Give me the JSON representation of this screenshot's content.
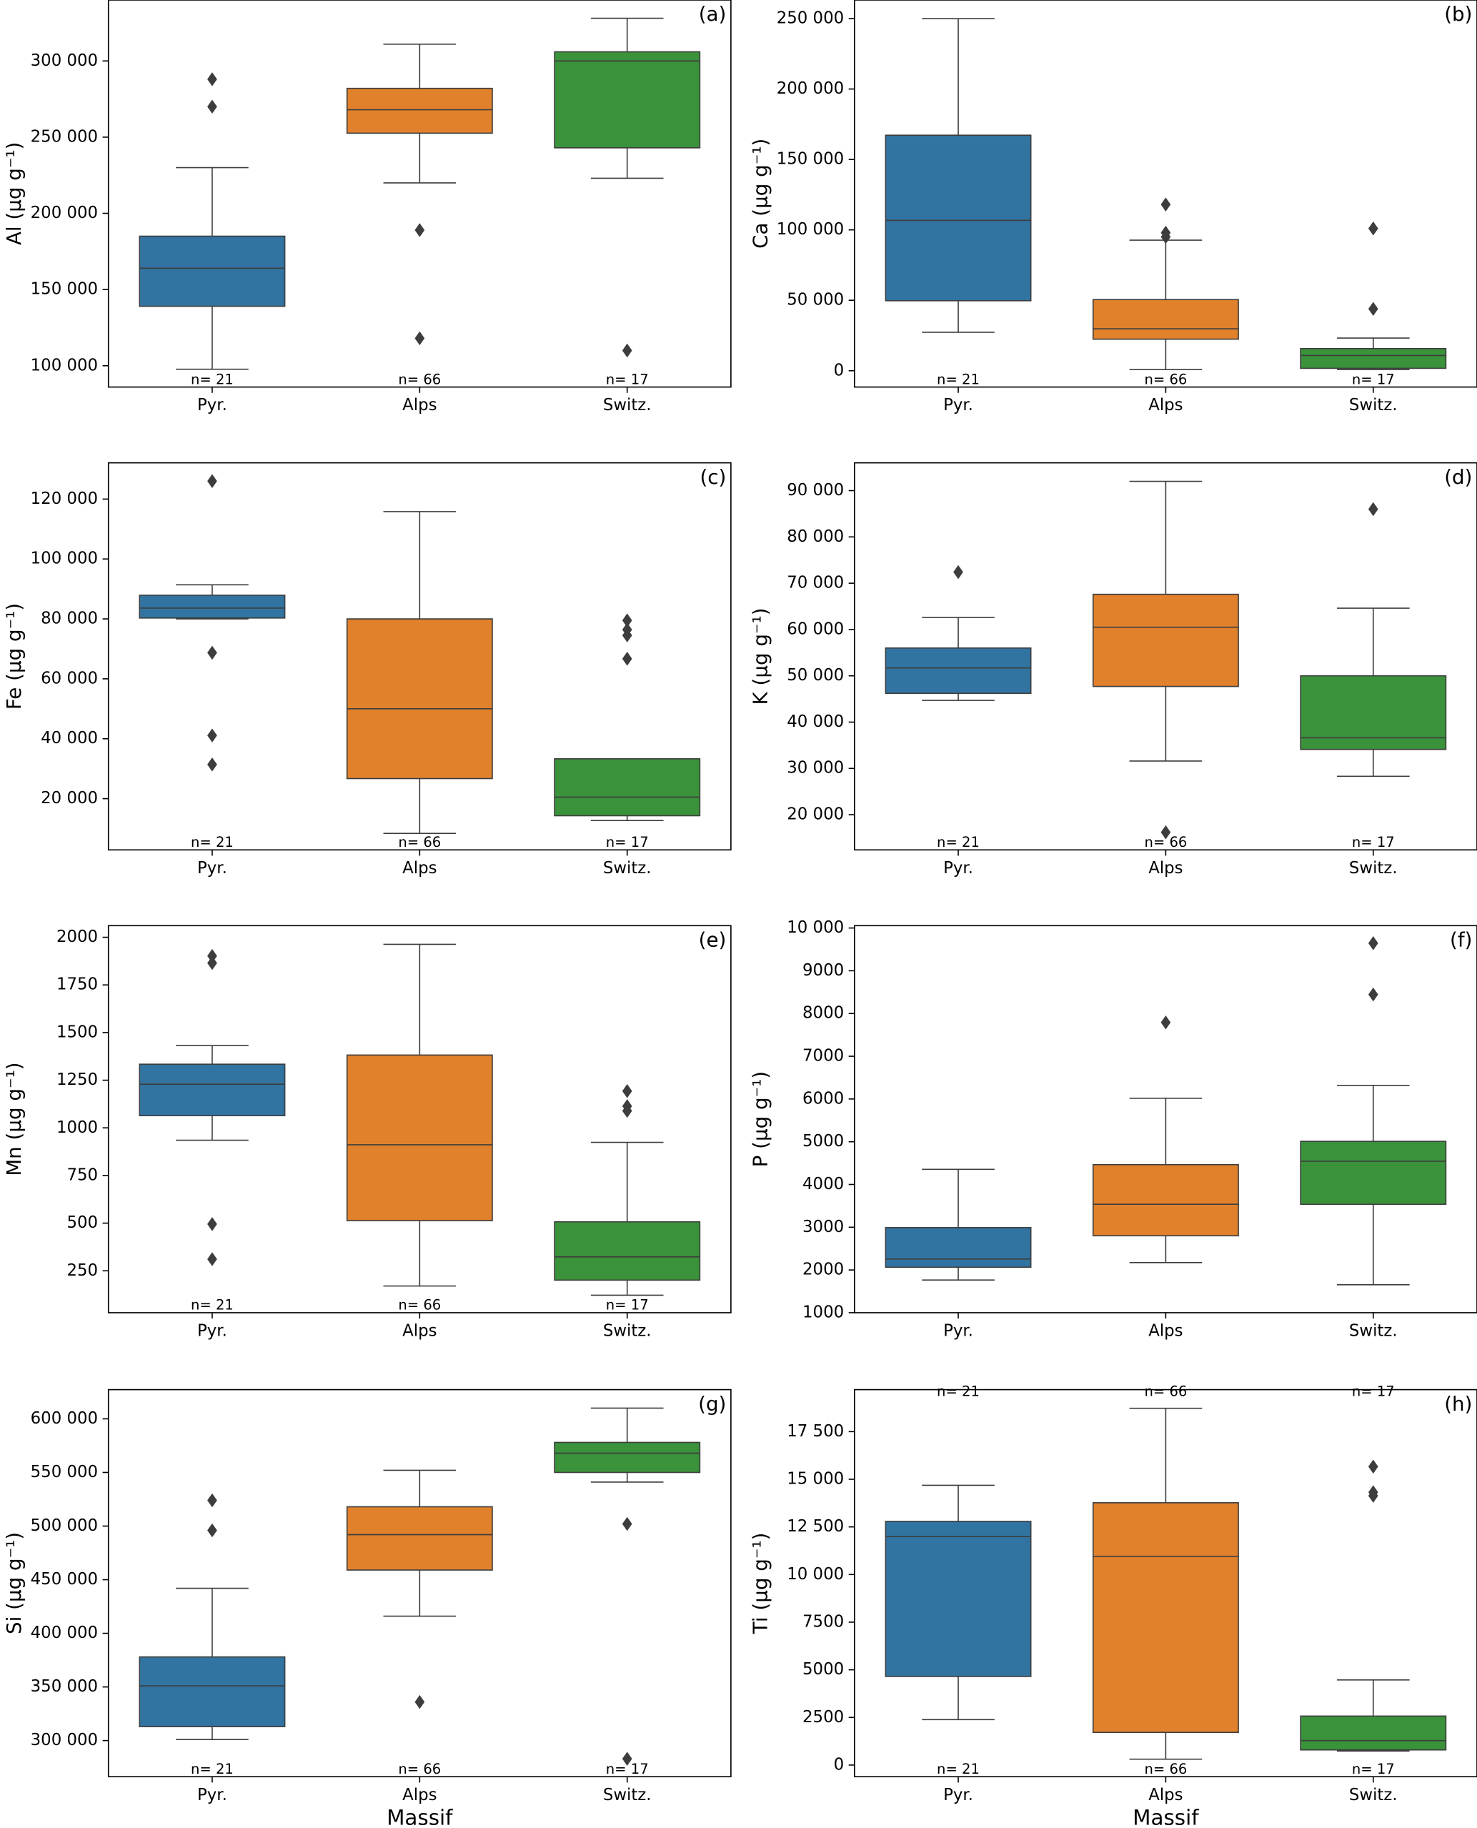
{
  "chart_data": [
    {
      "type": "box",
      "panel_label": "(a)",
      "ylabel": "Al (µg g⁻¹)",
      "categories": [
        "Pyr.",
        "Alps",
        "Switz."
      ],
      "boxes": [
        {
          "color": "#3274a1",
          "whislo": 97700,
          "q1": 139000,
          "med": 164000,
          "q3": 185000,
          "whishi": 230000,
          "fliers": [
            288000,
            270000
          ],
          "n": "n= 21"
        },
        {
          "color": "#e1812c",
          "whislo": 220000,
          "q1": 252600,
          "med": 268000,
          "q3": 282000,
          "whishi": 311000,
          "fliers": [
            189000,
            118000
          ],
          "n": "n= 66"
        },
        {
          "color": "#3a923a",
          "whislo": 223000,
          "q1": 243000,
          "med": 300000,
          "q3": 306000,
          "whishi": 328000,
          "fliers": [
            110000
          ],
          "n": "n= 17"
        }
      ],
      "ylim": [
        86000,
        340000
      ],
      "yticks": [
        {
          "value": 100000,
          "label": "100 000"
        },
        {
          "value": 150000,
          "label": "150 000"
        },
        {
          "value": 200000,
          "label": "200 000"
        },
        {
          "value": 250000,
          "label": "250 000"
        },
        {
          "value": 300000,
          "label": "300 000"
        }
      ]
    },
    {
      "type": "box",
      "panel_label": "(b)",
      "ylabel": "Ca (µg g⁻¹)",
      "categories": [
        "Pyr.",
        "Alps",
        "Switz."
      ],
      "boxes": [
        {
          "color": "#3274a1",
          "whislo": 27300,
          "q1": 49700,
          "med": 106800,
          "q3": 167200,
          "whishi": 250000,
          "fliers": [],
          "n": "n= 21"
        },
        {
          "color": "#e1812c",
          "whislo": 800,
          "q1": 22400,
          "med": 29800,
          "q3": 50500,
          "whishi": 92700,
          "fliers": [
            118000,
            98000,
            95000
          ],
          "n": "n= 66"
        },
        {
          "color": "#3a923a",
          "whislo": 800,
          "q1": 1700,
          "med": 10800,
          "q3": 15700,
          "whishi": 23200,
          "fliers": [
            101000,
            43900
          ],
          "n": "n= 17"
        }
      ],
      "ylim": [
        -11600,
        263200
      ],
      "yticks": [
        0,
        {
          "value": 50000,
          "label": "50 000"
        },
        {
          "value": 100000,
          "label": "100 000"
        },
        {
          "value": 150000,
          "label": "150 000"
        },
        {
          "value": 200000,
          "label": "200 000"
        },
        {
          "value": 250000,
          "label": "250 000"
        }
      ]
    },
    {
      "type": "box",
      "panel_label": "(c)",
      "ylabel": "Fe (µg g⁻¹)",
      "categories": [
        "Pyr.",
        "Alps",
        "Switz."
      ],
      "boxes": [
        {
          "color": "#3274a1",
          "whislo": 80000,
          "q1": 80300,
          "med": 83600,
          "q3": 87900,
          "whishi": 91400,
          "fliers": [
            126000,
            68700,
            41100,
            31400
          ],
          "n": "n= 21"
        },
        {
          "color": "#e1812c",
          "whislo": 8400,
          "q1": 26700,
          "med": 50000,
          "q3": 80000,
          "whishi": 115800,
          "fliers": [],
          "n": "n= 66"
        },
        {
          "color": "#3a923a",
          "whislo": 12700,
          "q1": 14300,
          "med": 20500,
          "q3": 33300,
          "whishi": 33300,
          "fliers": [
            79500,
            76400,
            74500,
            66700
          ],
          "n": "n= 17"
        }
      ],
      "ylim": [
        2900,
        132100
      ],
      "yticks": [
        {
          "value": 20000,
          "label": "20 000"
        },
        {
          "value": 40000,
          "label": "40 000"
        },
        {
          "value": 60000,
          "label": "60 000"
        },
        {
          "value": 80000,
          "label": "80 000"
        },
        {
          "value": 100000,
          "label": "100 000"
        },
        {
          "value": 120000,
          "label": "120 000"
        }
      ]
    },
    {
      "type": "box",
      "panel_label": "(d)",
      "ylabel": "K (µg g⁻¹)",
      "categories": [
        "Pyr.",
        "Alps",
        "Switz."
      ],
      "boxes": [
        {
          "color": "#3274a1",
          "whislo": 44700,
          "q1": 46200,
          "med": 51700,
          "q3": 56000,
          "whishi": 62600,
          "fliers": [
            72400
          ],
          "n": "n= 21"
        },
        {
          "color": "#e1812c",
          "whislo": 31600,
          "q1": 47700,
          "med": 60500,
          "q3": 67600,
          "whishi": 92000,
          "fliers": [
            16200
          ],
          "n": "n= 66"
        },
        {
          "color": "#3a923a",
          "whislo": 28300,
          "q1": 34100,
          "med": 36600,
          "q3": 50000,
          "whishi": 64600,
          "fliers": [
            86000
          ],
          "n": "n= 17"
        }
      ],
      "ylim": [
        12400,
        96000
      ],
      "yticks": [
        {
          "value": 20000,
          "label": "20 000"
        },
        {
          "value": 30000,
          "label": "30 000"
        },
        {
          "value": 40000,
          "label": "40 000"
        },
        {
          "value": 50000,
          "label": "50 000"
        },
        {
          "value": 60000,
          "label": "60 000"
        },
        {
          "value": 70000,
          "label": "70 000"
        },
        {
          "value": 80000,
          "label": "80 000"
        },
        {
          "value": 90000,
          "label": "90 000"
        }
      ]
    },
    {
      "type": "box",
      "panel_label": "(e)",
      "ylabel": "Mn (µg g⁻¹)",
      "categories": [
        "Pyr.",
        "Alps",
        "Switz."
      ],
      "boxes": [
        {
          "color": "#3274a1",
          "whislo": 935,
          "q1": 1064,
          "med": 1229,
          "q3": 1334,
          "whishi": 1432,
          "fliers": [
            1902,
            1865,
            495,
            311
          ],
          "n": "n= 21"
        },
        {
          "color": "#e1812c",
          "whislo": 170,
          "q1": 513,
          "med": 911,
          "q3": 1382,
          "whishi": 1963,
          "fliers": [],
          "n": "n= 66"
        },
        {
          "color": "#3a923a",
          "whislo": 122,
          "q1": 201,
          "med": 323,
          "q3": 507,
          "whishi": 924,
          "fliers": [
            1193,
            1114,
            1089
          ],
          "n": "n= 17"
        }
      ],
      "ylim": [
        30,
        2061
      ],
      "yticks": [
        250,
        500,
        750,
        1000,
        1250,
        1500,
        1750,
        2000
      ]
    },
    {
      "type": "box",
      "panel_label": "(f)",
      "ylabel": "P (µg g⁻¹)",
      "categories": [
        "Pyr.",
        "Alps",
        "Switz."
      ],
      "boxes": [
        {
          "color": "#3274a1",
          "whislo": 1764,
          "q1": 2064,
          "med": 2255,
          "q3": 2991,
          "whishi": 4355,
          "fliers": [],
          "n": "n= 21"
        },
        {
          "color": "#e1812c",
          "whislo": 2173,
          "q1": 2800,
          "med": 3536,
          "q3": 4464,
          "whishi": 6018,
          "fliers": [
            7791
          ],
          "n": "n= 66"
        },
        {
          "color": "#3a923a",
          "whislo": 1655,
          "q1": 3536,
          "med": 4545,
          "q3": 5009,
          "whishi": 6318,
          "fliers": [
            9645,
            8445
          ],
          "n": "n= 17"
        }
      ],
      "ylim": [
        1000,
        10055
      ],
      "yticks": [
        1000,
        2000,
        3000,
        4000,
        5000,
        6000,
        7000,
        8000,
        9000,
        {
          "value": 10000,
          "label": "10 000"
        }
      ]
    },
    {
      "type": "box",
      "panel_label": "(g)",
      "ylabel": "Si (µg g⁻¹)",
      "xlabel": "Massif",
      "categories": [
        "Pyr.",
        "Alps",
        "Switz."
      ],
      "boxes": [
        {
          "color": "#3274a1",
          "whislo": 301000,
          "q1": 313000,
          "med": 351000,
          "q3": 378000,
          "whishi": 442000,
          "fliers": [
            524000,
            496000
          ],
          "n": "n= 21"
        },
        {
          "color": "#e1812c",
          "whislo": 416000,
          "q1": 459000,
          "med": 492000,
          "q3": 518000,
          "whishi": 552000,
          "fliers": [
            336000
          ],
          "n": "n= 66"
        },
        {
          "color": "#3a923a",
          "whislo": 541000,
          "q1": 550000,
          "med": 568000,
          "q3": 578000,
          "whishi": 610000,
          "fliers": [
            502000,
            283000
          ],
          "n": "n= 17"
        }
      ],
      "ylim": [
        266300,
        627200
      ],
      "yticks": [
        {
          "value": 300000,
          "label": "300 000"
        },
        {
          "value": 350000,
          "label": "350 000"
        },
        {
          "value": 400000,
          "label": "400 000"
        },
        {
          "value": 450000,
          "label": "450 000"
        },
        {
          "value": 500000,
          "label": "500 000"
        },
        {
          "value": 550000,
          "label": "550 000"
        },
        {
          "value": 600000,
          "label": "600 000"
        }
      ]
    },
    {
      "type": "box",
      "panel_label": "(h)",
      "ylabel": "Ti (µg g⁻¹)",
      "xlabel": "Massif",
      "categories": [
        "Pyr.",
        "Alps",
        "Switz."
      ],
      "boxes": [
        {
          "color": "#3274a1",
          "whislo": 2386,
          "q1": 4650,
          "med": 11993,
          "q3": 12789,
          "whishi": 14685,
          "fliers": [],
          "n": "n= 21"
        },
        {
          "color": "#e1812c",
          "whislo": 306,
          "q1": 1713,
          "med": 10953,
          "q3": 13767,
          "whishi": 18723,
          "fliers": [],
          "n": "n= 66"
        },
        {
          "color": "#3a923a",
          "whislo": 734,
          "q1": 795,
          "med": 1285,
          "q3": 2570,
          "whishi": 4467,
          "fliers": [
            15664,
            14318,
            14134
          ],
          "n": "n= 17"
        }
      ],
      "ylim": [
        -612,
        19703
      ],
      "yticks": [
        0,
        2500,
        5000,
        7500,
        {
          "value": 10000,
          "label": "10 000"
        },
        {
          "value": 12500,
          "label": "12 500"
        },
        {
          "value": 15000,
          "label": "15 000"
        },
        {
          "value": 17500,
          "label": "17 500"
        }
      ]
    }
  ]
}
